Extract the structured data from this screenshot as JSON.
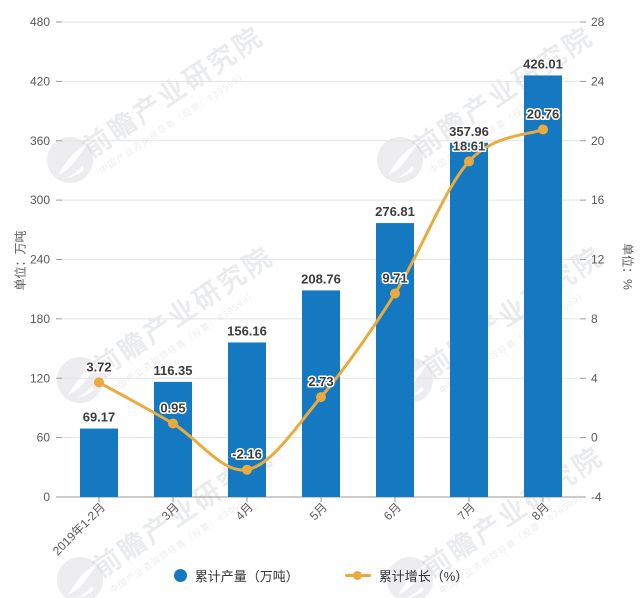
{
  "watermark": {
    "logo": "qianzhan-logo",
    "text": "前瞻产业研究院",
    "subtext": "中国产业咨询领导者（股票：839599）"
  },
  "chart_data": {
    "type": "bar+line",
    "categories": [
      "2019年1-2月",
      "3月",
      "4月",
      "5月",
      "6月",
      "7月",
      "8月"
    ],
    "series": [
      {
        "name": "累计产量（万吨）",
        "type": "bar",
        "axis": "left",
        "color": "#1579c1",
        "values": [
          69.17,
          116.35,
          156.16,
          208.76,
          276.81,
          357.96,
          426.01
        ]
      },
      {
        "name": "累计增长（%）",
        "type": "line",
        "axis": "right",
        "color": "#ebaa3d",
        "values": [
          3.72,
          0.95,
          -2.16,
          2.73,
          9.71,
          18.61,
          20.76
        ]
      }
    ],
    "left_axis": {
      "name": "单位：万吨",
      "min": 0,
      "max": 480,
      "ticks": [
        0,
        60,
        120,
        180,
        240,
        300,
        360,
        420,
        480
      ]
    },
    "right_axis": {
      "name": "单位：%",
      "min": -4,
      "max": 28,
      "ticks": [
        -4,
        0,
        4,
        8,
        12,
        16,
        20,
        24,
        28
      ]
    },
    "grid": true,
    "legend_position": "bottom",
    "styles": {
      "grid_color": "#e3e3e3",
      "axis_color": "#9a9a9a",
      "tick_label_color": "#595959",
      "data_label_color": "#3c3c3c"
    }
  }
}
